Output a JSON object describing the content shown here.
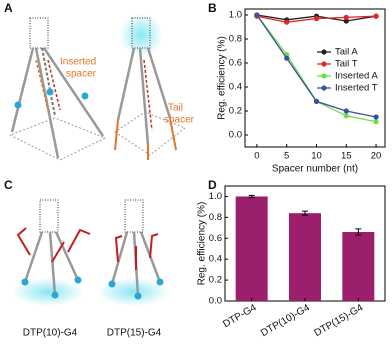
{
  "panels": [
    "A",
    "B",
    "C",
    "D"
  ],
  "panel_a": {
    "inserted_label": [
      "Inserted",
      "spacer"
    ],
    "tail_label": [
      "Tail",
      "spacer"
    ]
  },
  "panel_c": {
    "labels": [
      "DTP(10)-G4",
      "DTP(15)-G4"
    ]
  },
  "chart_data": [
    {
      "type": "line",
      "xlabel": "Spacer number (nt)",
      "ylabel": "Reg. efficiency (%)",
      "x": [
        0,
        5,
        10,
        15,
        20
      ],
      "xlim": [
        -2,
        21.5
      ],
      "xticks": [
        0,
        5,
        10,
        15,
        20
      ],
      "ylim": [
        -0.1,
        1.05
      ],
      "yticks": [
        {
          "value": 0,
          "label": "0.0"
        },
        {
          "value": 0.2,
          "label": "0.2"
        },
        {
          "value": 0.4,
          "label": "0.4"
        },
        {
          "value": 0.6,
          "label": "0.6"
        },
        {
          "value": 0.8,
          "label": "0.8"
        },
        {
          "value": 1,
          "label": "1.0"
        }
      ],
      "legend": "center right",
      "series": [
        {
          "name": "Tail A",
          "color": "#222222",
          "values": [
            1.0,
            0.96,
            0.99,
            0.95,
            0.99
          ]
        },
        {
          "name": "Tail T",
          "color": "#e0252a",
          "values": [
            0.99,
            0.94,
            0.97,
            0.98,
            0.99
          ]
        },
        {
          "name": "Inserted A",
          "color": "#6be04a",
          "values": [
            1.0,
            0.67,
            0.28,
            0.16,
            0.11
          ]
        },
        {
          "name": "Inserted T",
          "color": "#3d4f9c",
          "values": [
            1.0,
            0.64,
            0.28,
            0.2,
            0.15
          ]
        }
      ]
    },
    {
      "type": "bar",
      "ylabel": "Reg. efficiency (%)",
      "categories": [
        "DTP-G4",
        "DTP(10)-G4",
        "DTP(15)-G4"
      ],
      "values": [
        1.0,
        0.84,
        0.66
      ],
      "errors": [
        0.01,
        0.02,
        0.03
      ],
      "color": "#9c1f6d",
      "ylim": [
        0,
        1.1
      ],
      "yticks": [
        {
          "value": 0,
          "label": "0.0"
        },
        {
          "value": 0.2,
          "label": "0.2"
        },
        {
          "value": 0.4,
          "label": "0.4"
        },
        {
          "value": 0.6,
          "label": "0.6"
        },
        {
          "value": 0.8,
          "label": "0.8"
        },
        {
          "value": 1,
          "label": "1.0"
        }
      ]
    }
  ]
}
